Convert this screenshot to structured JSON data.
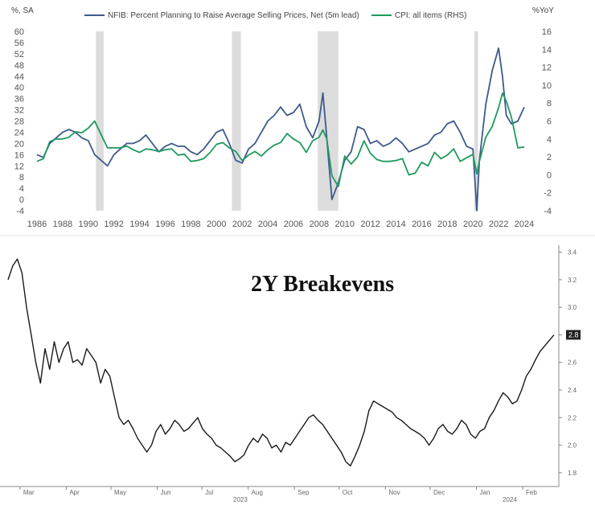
{
  "chart_data": [
    {
      "type": "line",
      "left_axis_unit": "%, SA",
      "right_axis_unit": "%YoY",
      "xlim": [
        1985.5,
        2024.5
      ],
      "ylim_left": [
        -4,
        60
      ],
      "ylim_right": [
        -4,
        16
      ],
      "left_ticks": [
        60,
        56,
        52,
        48,
        44,
        40,
        36,
        32,
        28,
        24,
        20,
        16,
        12,
        8,
        4,
        0,
        -4
      ],
      "right_ticks": [
        16,
        14,
        12,
        10,
        8,
        6,
        4,
        2,
        0,
        -2,
        -4
      ],
      "x_ticks": [
        "1986",
        "1988",
        "1990",
        "1992",
        "1994",
        "1996",
        "1998",
        "2000",
        "2002",
        "2004",
        "2006",
        "2008",
        "2010",
        "2012",
        "2014",
        "2016",
        "2018",
        "2020",
        "2022",
        "2024"
      ],
      "recessions": [
        [
          1990.6,
          1991.2
        ],
        [
          2001.2,
          2001.9
        ],
        [
          2007.9,
          2009.5
        ],
        [
          2020.1,
          2020.4
        ]
      ],
      "colors": {
        "nfib": "#3f5a8c",
        "cpi": "#1e9a5e",
        "recession": "#dcdcdc"
      },
      "grid": false,
      "legend_position": "top",
      "series": [
        {
          "name": "NFIB: Percent Planning to Raise Average Selling Prices, Net (5m lead)",
          "axis": "left",
          "x": [
            1986.0,
            1986.5,
            1987.0,
            1987.5,
            1988.0,
            1988.5,
            1989.0,
            1989.5,
            1990.0,
            1990.5,
            1991.0,
            1991.5,
            1992.0,
            1992.5,
            1993.0,
            1993.5,
            1994.0,
            1994.5,
            1995.0,
            1995.5,
            1996.0,
            1996.5,
            1997.0,
            1997.5,
            1998.0,
            1998.5,
            1999.0,
            1999.5,
            2000.0,
            2000.5,
            2001.0,
            2001.5,
            2002.0,
            2002.5,
            2003.0,
            2003.5,
            2004.0,
            2004.5,
            2005.0,
            2005.5,
            2006.0,
            2006.5,
            2007.0,
            2007.5,
            2008.0,
            2008.3,
            2008.6,
            2009.0,
            2009.5,
            2010.0,
            2010.5,
            2011.0,
            2011.5,
            2012.0,
            2012.5,
            2013.0,
            2013.5,
            2014.0,
            2014.5,
            2015.0,
            2015.5,
            2016.0,
            2016.5,
            2017.0,
            2017.5,
            2018.0,
            2018.5,
            2019.0,
            2019.5,
            2020.0,
            2020.3,
            2020.5,
            2021.0,
            2021.5,
            2022.0,
            2022.3,
            2022.6,
            2023.0,
            2023.5,
            2024.0
          ],
          "values": [
            16,
            15,
            20,
            22,
            24,
            25,
            24,
            22,
            21,
            16,
            14,
            12,
            16,
            18,
            20,
            20,
            21,
            23,
            20,
            17,
            19,
            20,
            19,
            19,
            17,
            16,
            18,
            21,
            24,
            25,
            20,
            14,
            13,
            18,
            20,
            24,
            28,
            30,
            33,
            30,
            31,
            34,
            26,
            22,
            28,
            38,
            22,
            0,
            6,
            14,
            17,
            26,
            25,
            20,
            21,
            19,
            20,
            22,
            20,
            17,
            18,
            19,
            20,
            23,
            24,
            27,
            28,
            24,
            19,
            18,
            -4,
            14,
            34,
            46,
            54,
            44,
            30,
            27,
            28,
            33
          ]
        },
        {
          "name": "CPI: all items (RHS)",
          "axis": "right",
          "x": [
            1986.0,
            1986.5,
            1987.0,
            1987.5,
            1988.0,
            1988.5,
            1989.0,
            1989.5,
            1990.0,
            1990.5,
            1991.0,
            1991.5,
            1992.0,
            1992.5,
            1993.0,
            1993.5,
            1994.0,
            1994.5,
            1995.0,
            1995.5,
            1996.0,
            1996.5,
            1997.0,
            1997.5,
            1998.0,
            1998.5,
            1999.0,
            1999.5,
            2000.0,
            2000.5,
            2001.0,
            2001.5,
            2002.0,
            2002.5,
            2003.0,
            2003.5,
            2004.0,
            2004.5,
            2005.0,
            2005.5,
            2006.0,
            2006.5,
            2007.0,
            2007.5,
            2008.0,
            2008.3,
            2008.6,
            2009.0,
            2009.5,
            2010.0,
            2010.5,
            2011.0,
            2011.5,
            2012.0,
            2012.5,
            2013.0,
            2013.5,
            2014.0,
            2014.5,
            2015.0,
            2015.5,
            2016.0,
            2016.5,
            2017.0,
            2017.5,
            2018.0,
            2018.5,
            2019.0,
            2019.5,
            2020.0,
            2020.3,
            2020.5,
            2021.0,
            2021.5,
            2022.0,
            2022.3,
            2022.6,
            2023.0,
            2023.5,
            2024.0
          ],
          "values": [
            1.5,
            1.8,
            3.7,
            4.0,
            4.0,
            4.2,
            4.8,
            4.7,
            5.2,
            6.0,
            4.5,
            3.0,
            3.0,
            3.0,
            3.2,
            2.8,
            2.5,
            2.9,
            2.8,
            2.6,
            2.8,
            2.9,
            2.2,
            2.3,
            1.5,
            1.6,
            1.8,
            2.5,
            3.4,
            3.6,
            3.0,
            2.6,
            1.6,
            2.2,
            2.6,
            2.1,
            2.8,
            3.3,
            3.6,
            4.6,
            4.0,
            3.6,
            2.5,
            3.8,
            4.2,
            5.0,
            4.0,
            -0.1,
            -1.3,
            2.1,
            1.2,
            2.0,
            3.8,
            2.4,
            1.7,
            1.5,
            1.5,
            1.6,
            1.8,
            0.0,
            0.2,
            1.4,
            1.0,
            2.5,
            1.8,
            2.2,
            2.9,
            1.5,
            1.9,
            2.3,
            0.1,
            1.5,
            4.2,
            5.4,
            7.5,
            9.1,
            8.2,
            6.4,
            3.0,
            3.1
          ]
        }
      ]
    },
    {
      "type": "line",
      "title": "2Y Breakevens",
      "ylim": [
        1.7,
        3.45
      ],
      "y_ticks": [
        "3.4",
        "3.2",
        "3.0",
        "2.8",
        "2.6",
        "2.4",
        "2.2",
        "2.0",
        "1.8"
      ],
      "last_value_label": "2.8",
      "x_ticks": [
        "Mar",
        "Apr",
        "May",
        "Jun",
        "Jul",
        "Aug",
        "Sep",
        "Oct",
        "Nov",
        "Dec",
        "Jan",
        "Feb"
      ],
      "year_labels": [
        "2023",
        "2024"
      ],
      "colors": {
        "line": "#1a1a1a",
        "value_box": "#222222"
      },
      "grid": false,
      "series": [
        {
          "x_start": "2023-02-21",
          "x_end": "2024-02-22",
          "values": [
            3.2,
            3.3,
            3.35,
            3.25,
            3.0,
            2.8,
            2.6,
            2.45,
            2.7,
            2.55,
            2.75,
            2.6,
            2.7,
            2.75,
            2.6,
            2.62,
            2.58,
            2.7,
            2.65,
            2.6,
            2.45,
            2.55,
            2.5,
            2.35,
            2.2,
            2.15,
            2.18,
            2.12,
            2.05,
            2.0,
            1.95,
            2.0,
            2.1,
            2.15,
            2.08,
            2.12,
            2.18,
            2.15,
            2.1,
            2.12,
            2.16,
            2.2,
            2.12,
            2.08,
            2.05,
            2.0,
            1.98,
            1.95,
            1.92,
            1.88,
            1.9,
            1.93,
            2.0,
            2.05,
            2.02,
            2.08,
            2.05,
            1.98,
            2.0,
            1.95,
            2.02,
            2.0,
            2.05,
            2.1,
            2.15,
            2.2,
            2.22,
            2.18,
            2.15,
            2.1,
            2.05,
            2.0,
            1.95,
            1.88,
            1.85,
            1.92,
            2.0,
            2.1,
            2.25,
            2.32,
            2.3,
            2.28,
            2.26,
            2.24,
            2.2,
            2.18,
            2.15,
            2.12,
            2.1,
            2.08,
            2.05,
            2.0,
            2.05,
            2.12,
            2.15,
            2.1,
            2.08,
            2.12,
            2.18,
            2.15,
            2.08,
            2.05,
            2.1,
            2.12,
            2.2,
            2.25,
            2.32,
            2.38,
            2.35,
            2.3,
            2.32,
            2.4,
            2.5,
            2.55,
            2.62,
            2.68,
            2.72,
            2.76,
            2.8
          ]
        }
      ]
    }
  ]
}
